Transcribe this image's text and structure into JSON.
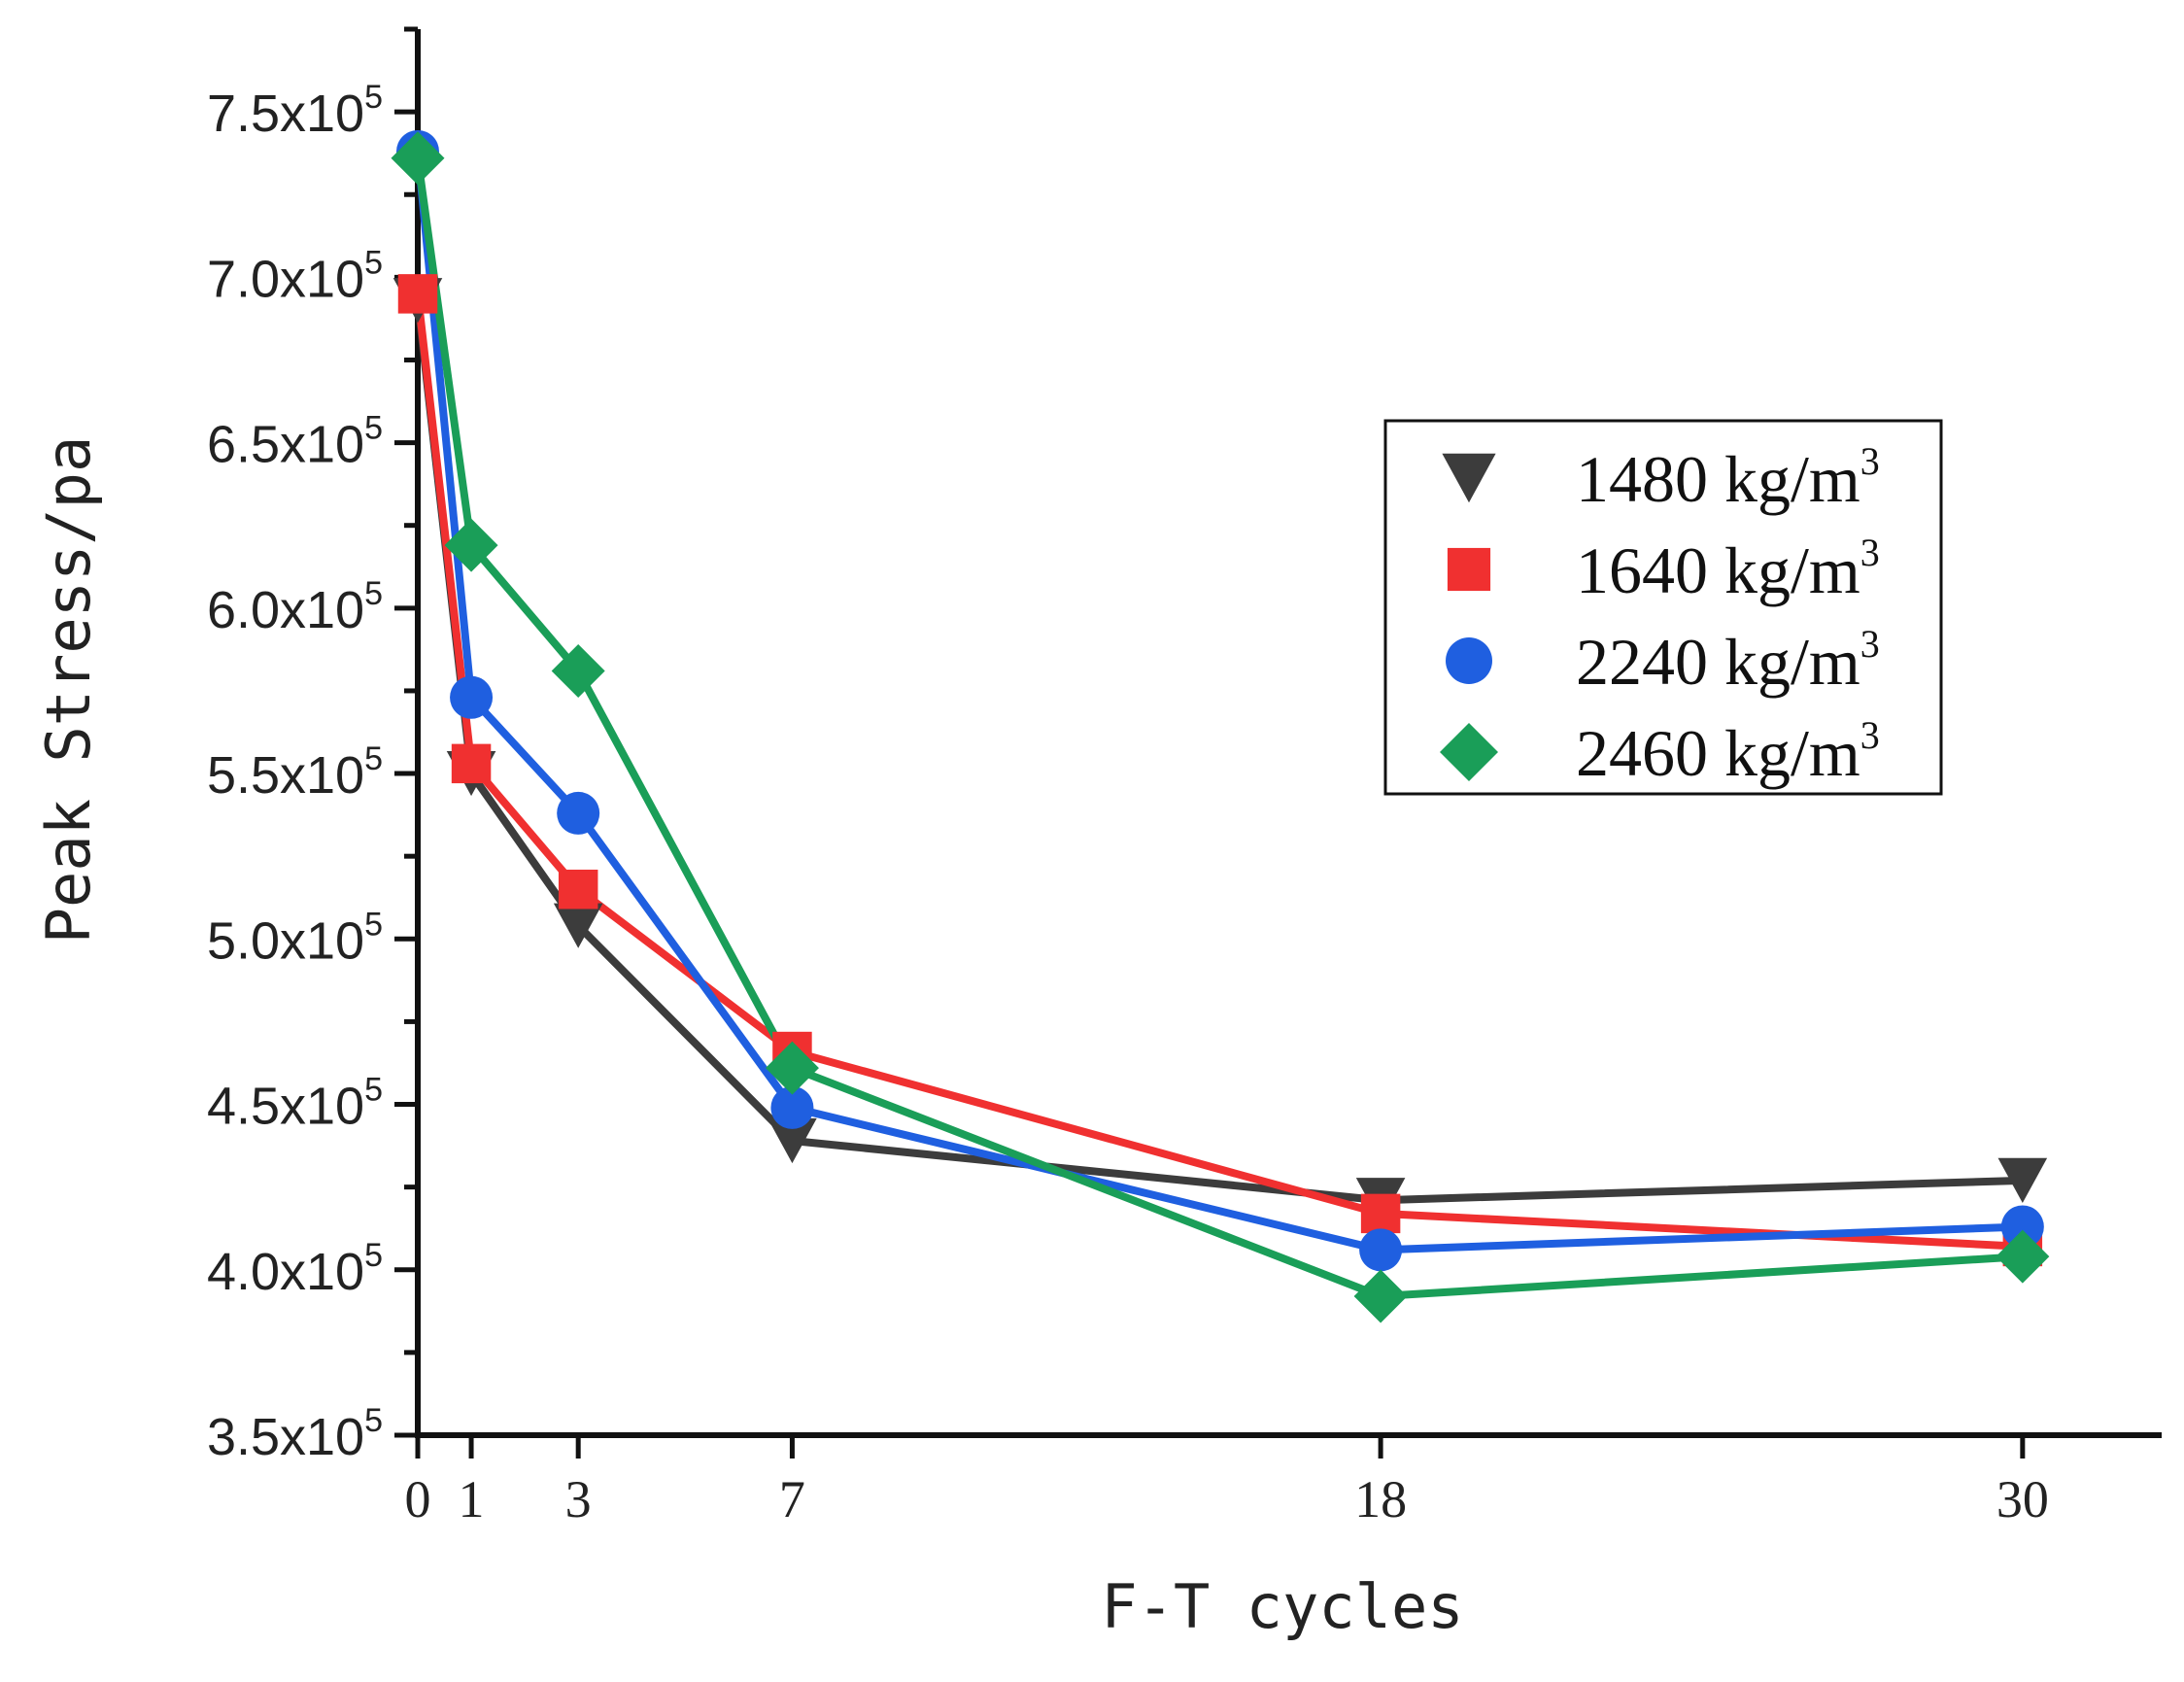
{
  "chart_data": {
    "type": "line",
    "xlabel": "F-T cycles",
    "ylabel": "Peak Stress/pa",
    "x": [
      0,
      1,
      3,
      7,
      18,
      30
    ],
    "x_tick_labels": [
      "0",
      "1",
      "3",
      "7",
      "18",
      "30"
    ],
    "xlim": [
      0,
      32.6
    ],
    "ylim": [
      350000,
      775000
    ],
    "y_ticks": [
      350000,
      400000,
      450000,
      500000,
      550000,
      600000,
      650000,
      700000,
      750000
    ],
    "y_tick_labels": [
      {
        "mantissa": "3.5x10",
        "exp": "5"
      },
      {
        "mantissa": "4.0x10",
        "exp": "5"
      },
      {
        "mantissa": "4.5x10",
        "exp": "5"
      },
      {
        "mantissa": "5.0x10",
        "exp": "5"
      },
      {
        "mantissa": "5.5x10",
        "exp": "5"
      },
      {
        "mantissa": "6.0x10",
        "exp": "5"
      },
      {
        "mantissa": "6.5x10",
        "exp": "5"
      },
      {
        "mantissa": "7.0x10",
        "exp": "5"
      },
      {
        "mantissa": "7.5x10",
        "exp": "5"
      }
    ],
    "grid": false,
    "legend_position": "right",
    "series": [
      {
        "name": "1480 kg/m",
        "name_sup": "3",
        "marker": "triangle-down",
        "color": "#3c3c3c",
        "values": [
          693000,
          550000,
          504000,
          439000,
          421000,
          427000
        ]
      },
      {
        "name": "1640 kg/m",
        "name_sup": "3",
        "marker": "square",
        "color": "#f03030",
        "values": [
          695000,
          553000,
          515000,
          466000,
          417000,
          407000
        ]
      },
      {
        "name": "2240 kg/m",
        "name_sup": "3",
        "marker": "circle",
        "color": "#1f5fe0",
        "values": [
          738000,
          573000,
          538000,
          449000,
          406000,
          413000
        ]
      },
      {
        "name": "2460 kg/m",
        "name_sup": "3",
        "marker": "diamond",
        "color": "#1a9e58",
        "values": [
          736000,
          619000,
          581000,
          461000,
          392000,
          404000
        ]
      }
    ]
  }
}
